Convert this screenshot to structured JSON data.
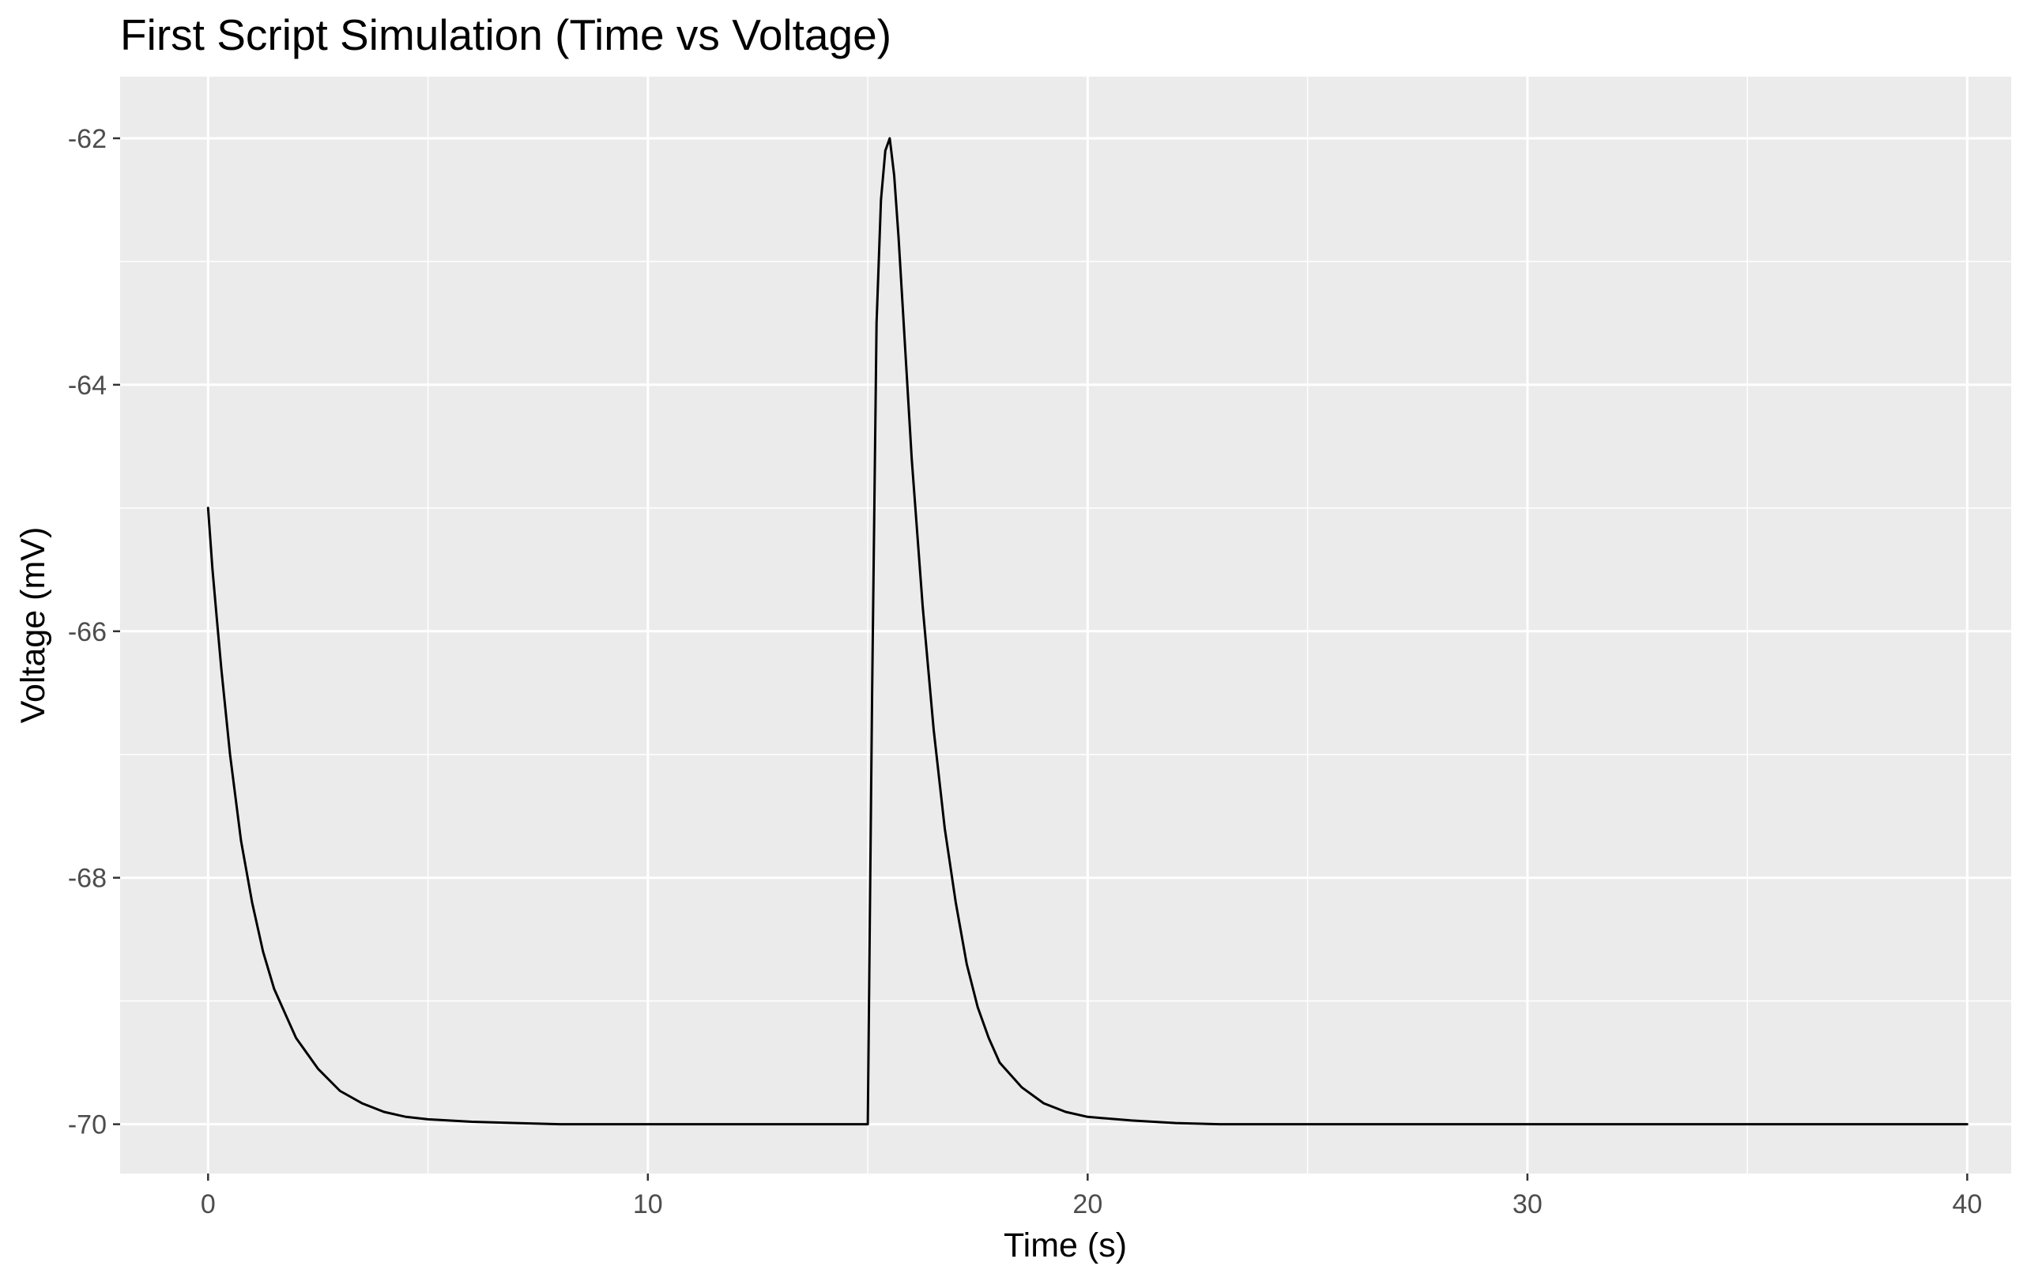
{
  "chart_data": {
    "type": "line",
    "title": "First Script Simulation (Time vs Voltage)",
    "xlabel": "Time (s)",
    "ylabel": "Voltage (mV)",
    "xlim": [
      -2,
      41
    ],
    "ylim": [
      -70.4,
      -61.5
    ],
    "x_ticks": [
      0,
      10,
      20,
      30,
      40
    ],
    "x_tick_labels": [
      "0",
      "10",
      "20",
      "30",
      "40"
    ],
    "x_minor_ticks": [
      5,
      15,
      25,
      35
    ],
    "y_ticks": [
      -70,
      -68,
      -66,
      -64,
      -62
    ],
    "y_tick_labels": [
      "-70",
      "-68",
      "-66",
      "-64",
      "-62"
    ],
    "y_minor_ticks": [
      -69,
      -67,
      -65,
      -63
    ],
    "grid": true,
    "legend": "none",
    "panel_background": "#ebebeb",
    "grid_color": "#ffffff",
    "line_color": "#000000",
    "series": [
      {
        "x": [
          0,
          0.1,
          0.2,
          0.3,
          0.5,
          0.75,
          1,
          1.25,
          1.5,
          1.75,
          2,
          2.5,
          3,
          3.5,
          4,
          4.5,
          5,
          6,
          7,
          8,
          10,
          12,
          14,
          15,
          15.1,
          15.2,
          15.3,
          15.4,
          15.5,
          15.6,
          15.7,
          15.8,
          16,
          16.25,
          16.5,
          16.75,
          17,
          17.25,
          17.5,
          17.75,
          18,
          18.5,
          19,
          19.5,
          20,
          21,
          22,
          23,
          25,
          30,
          35,
          40
        ],
        "y": [
          -65,
          -65.5,
          -65.9,
          -66.3,
          -67,
          -67.7,
          -68.2,
          -68.6,
          -68.9,
          -69.1,
          -69.3,
          -69.55,
          -69.73,
          -69.83,
          -69.9,
          -69.94,
          -69.96,
          -69.98,
          -69.99,
          -70,
          -70,
          -70,
          -70,
          -70,
          -66.5,
          -63.5,
          -62.5,
          -62.1,
          -62.0,
          -62.3,
          -62.8,
          -63.4,
          -64.6,
          -65.8,
          -66.8,
          -67.6,
          -68.2,
          -68.7,
          -69.05,
          -69.3,
          -69.5,
          -69.7,
          -69.83,
          -69.9,
          -69.94,
          -69.97,
          -69.99,
          -70,
          -70,
          -70,
          -70,
          -70
        ]
      }
    ]
  }
}
